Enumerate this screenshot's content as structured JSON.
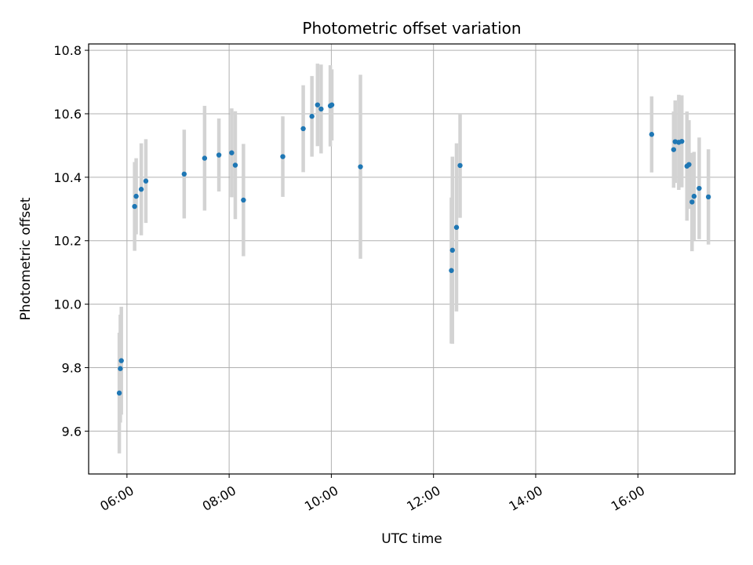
{
  "chart_data": {
    "type": "scatter",
    "title": "Photometric offset variation",
    "xlabel": "UTC time",
    "ylabel": "Photometric offset",
    "x_unit": "hours UTC",
    "xlim": [
      5.25,
      17.9
    ],
    "ylim": [
      9.465,
      10.82
    ],
    "grid": true,
    "x_ticks": [
      {
        "value": 6,
        "label": "06:00"
      },
      {
        "value": 8,
        "label": "08:00"
      },
      {
        "value": 10,
        "label": "10:00"
      },
      {
        "value": 12,
        "label": "12:00"
      },
      {
        "value": 14,
        "label": "14:00"
      },
      {
        "value": 16,
        "label": "16:00"
      }
    ],
    "y_ticks": [
      {
        "value": 9.6,
        "label": "9.6"
      },
      {
        "value": 9.8,
        "label": "9.8"
      },
      {
        "value": 10.0,
        "label": "10.0"
      },
      {
        "value": 10.2,
        "label": "10.2"
      },
      {
        "value": 10.4,
        "label": "10.4"
      },
      {
        "value": 10.6,
        "label": "10.6"
      },
      {
        "value": 10.8,
        "label": "10.8"
      }
    ],
    "point_color": "#1f77b4",
    "errorbar_color": "#d3d3d3",
    "points": [
      {
        "x": 5.85,
        "y": 9.72,
        "err": 0.19
      },
      {
        "x": 5.87,
        "y": 9.797,
        "err": 0.17
      },
      {
        "x": 5.89,
        "y": 9.822,
        "err": 0.17
      },
      {
        "x": 6.15,
        "y": 10.308,
        "err": 0.14
      },
      {
        "x": 6.18,
        "y": 10.34,
        "err": 0.12
      },
      {
        "x": 6.28,
        "y": 10.362,
        "err": 0.145
      },
      {
        "x": 6.37,
        "y": 10.388,
        "err": 0.132
      },
      {
        "x": 7.12,
        "y": 10.41,
        "err": 0.14
      },
      {
        "x": 7.52,
        "y": 10.46,
        "err": 0.165
      },
      {
        "x": 7.8,
        "y": 10.47,
        "err": 0.115
      },
      {
        "x": 8.05,
        "y": 10.477,
        "err": 0.14
      },
      {
        "x": 8.12,
        "y": 10.438,
        "err": 0.17
      },
      {
        "x": 8.28,
        "y": 10.328,
        "err": 0.177
      },
      {
        "x": 9.05,
        "y": 10.465,
        "err": 0.127
      },
      {
        "x": 9.45,
        "y": 10.553,
        "err": 0.137
      },
      {
        "x": 9.62,
        "y": 10.592,
        "err": 0.127
      },
      {
        "x": 9.73,
        "y": 10.628,
        "err": 0.13
      },
      {
        "x": 9.8,
        "y": 10.615,
        "err": 0.14
      },
      {
        "x": 9.98,
        "y": 10.625,
        "err": 0.128
      },
      {
        "x": 10.01,
        "y": 10.628,
        "err": 0.112
      },
      {
        "x": 10.57,
        "y": 10.433,
        "err": 0.29
      },
      {
        "x": 12.35,
        "y": 10.106,
        "err": 0.23
      },
      {
        "x": 12.37,
        "y": 10.17,
        "err": 0.295
      },
      {
        "x": 12.45,
        "y": 10.242,
        "err": 0.265
      },
      {
        "x": 12.52,
        "y": 10.437,
        "err": 0.165
      },
      {
        "x": 16.27,
        "y": 10.535,
        "err": 0.12
      },
      {
        "x": 16.7,
        "y": 10.487,
        "err": 0.12
      },
      {
        "x": 16.73,
        "y": 10.512,
        "err": 0.13
      },
      {
        "x": 16.8,
        "y": 10.51,
        "err": 0.15
      },
      {
        "x": 16.86,
        "y": 10.513,
        "err": 0.145
      },
      {
        "x": 16.96,
        "y": 10.435,
        "err": 0.172
      },
      {
        "x": 17.0,
        "y": 10.44,
        "err": 0.14
      },
      {
        "x": 17.06,
        "y": 10.322,
        "err": 0.155
      },
      {
        "x": 17.1,
        "y": 10.34,
        "err": 0.14
      },
      {
        "x": 17.2,
        "y": 10.365,
        "err": 0.16
      },
      {
        "x": 17.38,
        "y": 10.338,
        "err": 0.15
      }
    ]
  }
}
